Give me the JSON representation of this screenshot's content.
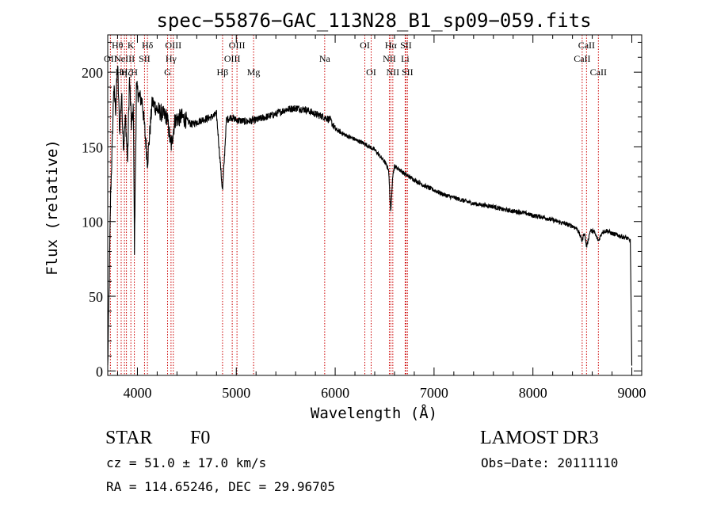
{
  "chart_data": {
    "type": "line",
    "title": "spec−55876−GAC_113N28_B1_sp09−059.fits",
    "xlabel": "Wavelength (Å)",
    "ylabel": "Flux (relative)",
    "xlim": [
      3700,
      9100
    ],
    "ylim": [
      -3,
      225
    ],
    "xticks": [
      4000,
      5000,
      6000,
      7000,
      8000,
      9000
    ],
    "yticks": [
      0,
      50,
      100,
      150,
      200
    ],
    "series": [
      {
        "name": "spectrum",
        "x": [
          3700,
          3715,
          3730,
          3745,
          3760,
          3780,
          3800,
          3820,
          3840,
          3860,
          3880,
          3900,
          3920,
          3940,
          3960,
          3970,
          3990,
          4010,
          4050,
          4102,
          4150,
          4200,
          4250,
          4300,
          4340,
          4380,
          4450,
          4550,
          4650,
          4750,
          4800,
          4861,
          4900,
          4950,
          5000,
          5100,
          5200,
          5300,
          5400,
          5500,
          5600,
          5700,
          5800,
          5890,
          5950,
          6000,
          6050,
          6100,
          6200,
          6300,
          6400,
          6500,
          6540,
          6563,
          6580,
          6600,
          6650,
          6700,
          6750,
          6800,
          6900,
          7000,
          7100,
          7200,
          7300,
          7400,
          7500,
          7600,
          7700,
          7800,
          7900,
          8000,
          8100,
          8200,
          8300,
          8400,
          8450,
          8498,
          8520,
          8542,
          8580,
          8620,
          8662,
          8700,
          8750,
          8800,
          8850,
          8900,
          8950,
          8985,
          9000
        ],
        "y": [
          2,
          60,
          120,
          150,
          190,
          175,
          205,
          160,
          185,
          150,
          170,
          140,
          195,
          165,
          175,
          80,
          190,
          185,
          180,
          140,
          180,
          175,
          172,
          170,
          150,
          168,
          170,
          165,
          168,
          170,
          172,
          120,
          168,
          170,
          168,
          167,
          168,
          170,
          172,
          175,
          176,
          175,
          172,
          170,
          168,
          162,
          160,
          158,
          155,
          152,
          148,
          140,
          135,
          105,
          130,
          137,
          135,
          132,
          130,
          128,
          124,
          121,
          118,
          116,
          114,
          112,
          111,
          110,
          108,
          107,
          106,
          104,
          103,
          101,
          99,
          97,
          95,
          87,
          93,
          83,
          94,
          93,
          87,
          93,
          94,
          92,
          91,
          90,
          89,
          87,
          3
        ]
      }
    ],
    "lines": [
      {
        "label": "OII",
        "wave": 3727,
        "row": 2
      },
      {
        "label": "Hθ",
        "wave": 3798,
        "row": 1
      },
      {
        "label": "Hη",
        "wave": 3836,
        "row": 3
      },
      {
        "label": "NeIII",
        "wave": 3869,
        "row": 2
      },
      {
        "label": "Hζ",
        "wave": 3889,
        "row": 3
      },
      {
        "label": "K",
        "wave": 3934,
        "row": 1
      },
      {
        "label": "H",
        "wave": 3969,
        "row": 3
      },
      {
        "label": "SII",
        "wave": 4072,
        "row": 2
      },
      {
        "label": "Hδ",
        "wave": 4102,
        "row": 1
      },
      {
        "label": "G",
        "wave": 4305,
        "row": 3
      },
      {
        "label": "Hγ",
        "wave": 4340,
        "row": 2
      },
      {
        "label": "OIII",
        "wave": 4363,
        "row": 1
      },
      {
        "label": "Hβ",
        "wave": 4861,
        "row": 3
      },
      {
        "label": "OIII",
        "wave": 4959,
        "row": 2
      },
      {
        "label": "OIII",
        "wave": 5007,
        "row": 1
      },
      {
        "label": "Mg",
        "wave": 5175,
        "row": 3
      },
      {
        "label": "Na",
        "wave": 5894,
        "row": 2
      },
      {
        "label": "OI",
        "wave": 6300,
        "row": 1
      },
      {
        "label": "OI",
        "wave": 6364,
        "row": 3
      },
      {
        "label": "NII",
        "wave": 6548,
        "row": 2
      },
      {
        "label": "Hα",
        "wave": 6563,
        "row": 1
      },
      {
        "label": "NII",
        "wave": 6583,
        "row": 3
      },
      {
        "label": "Li",
        "wave": 6708,
        "row": 2
      },
      {
        "label": "SII",
        "wave": 6716,
        "row": 1
      },
      {
        "label": "SII",
        "wave": 6731,
        "row": 3
      },
      {
        "label": "CaII",
        "wave": 8498,
        "row": 2
      },
      {
        "label": "CaII",
        "wave": 8542,
        "row": 1
      },
      {
        "label": "CaII",
        "wave": 8662,
        "row": 3
      }
    ]
  },
  "footer": {
    "class_label": "STAR",
    "subclass": "F0",
    "survey": "LAMOST DR3",
    "cz": "cz = 51.0 ± 17.0 km/s",
    "obs_date": "Obs−Date: 20111110",
    "coords": "RA = 114.65246, DEC =  29.96705"
  },
  "colors": {
    "line_marker": "#cc0000",
    "spectrum": "#000000",
    "axes": "#000000"
  }
}
